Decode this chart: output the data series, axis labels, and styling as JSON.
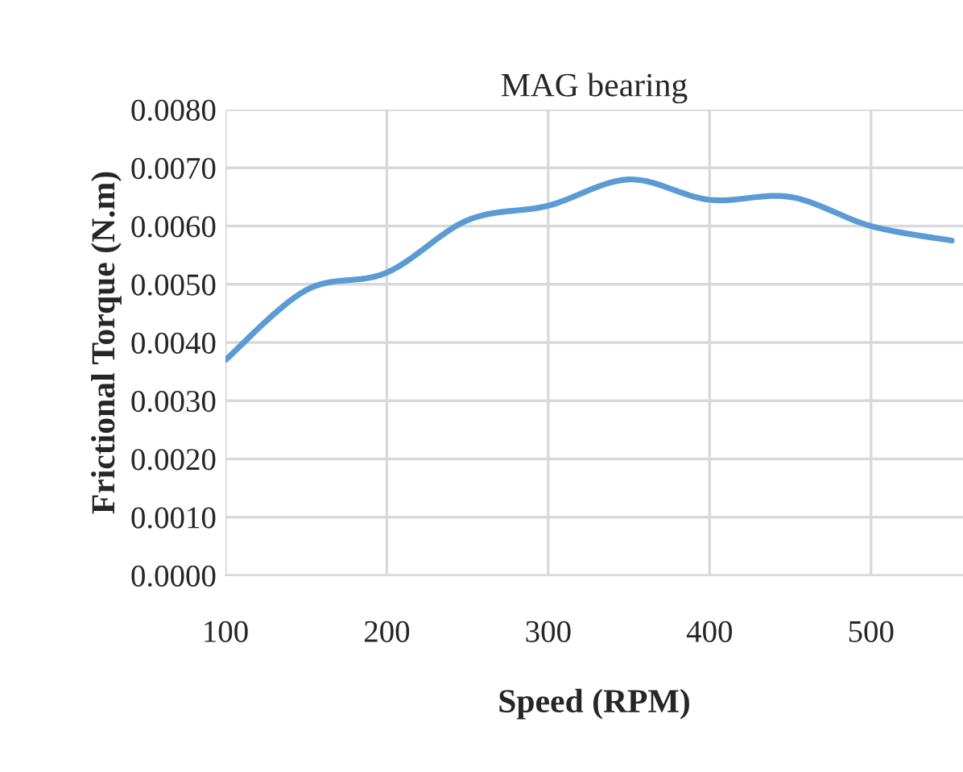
{
  "chart_data": {
    "type": "line",
    "title": "MAG bearing",
    "xlabel": "Speed (RPM)",
    "ylabel": "Frictional Torque (N.m)",
    "x": [
      100,
      150,
      200,
      250,
      300,
      350,
      400,
      450,
      500,
      550
    ],
    "series": [
      {
        "color": "#5b9bd5",
        "values": [
          0.0037,
          0.0049,
          0.0052,
          0.0061,
          0.00635,
          0.0068,
          0.00645,
          0.0065,
          0.006,
          0.00575
        ]
      }
    ],
    "xlim": [
      100,
      557
    ],
    "xticks": [
      100,
      200,
      300,
      400,
      500
    ],
    "ylim": [
      0,
      0.008
    ],
    "yticks": [
      {
        "value": 0,
        "label": "0.0000"
      },
      {
        "value": 0.001,
        "label": "0.0010"
      },
      {
        "value": 0.002,
        "label": "0.0020"
      },
      {
        "value": 0.003,
        "label": "0.0030"
      },
      {
        "value": 0.004,
        "label": "0.0040"
      },
      {
        "value": 0.005,
        "label": "0.0050"
      },
      {
        "value": 0.006,
        "label": "0.0060"
      },
      {
        "value": 0.007,
        "label": "0.0070"
      },
      {
        "value": 0.008,
        "label": "0.0080"
      }
    ],
    "grid": true,
    "legend": false,
    "marker": "none",
    "line_style": "solid"
  }
}
